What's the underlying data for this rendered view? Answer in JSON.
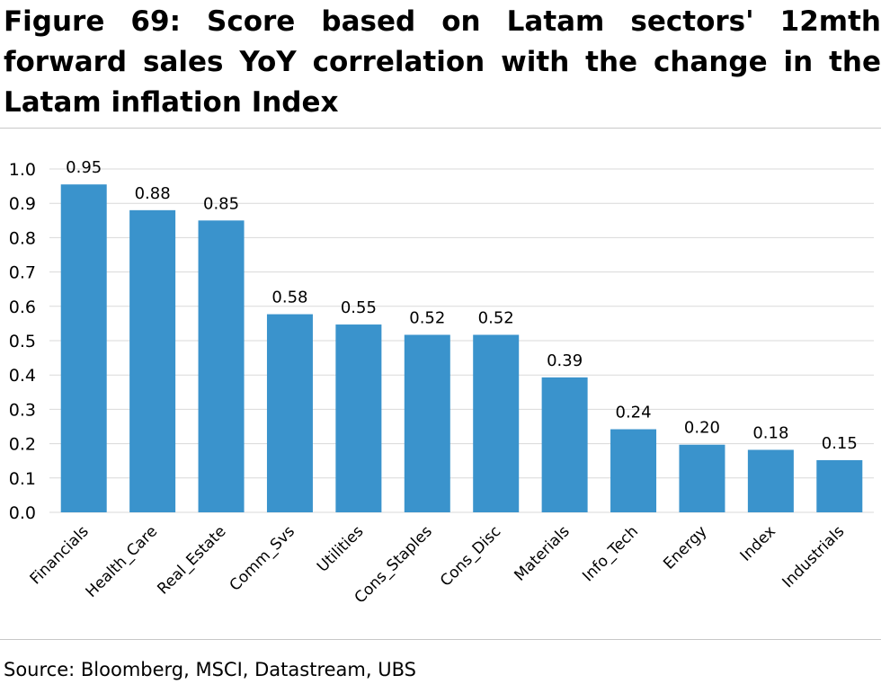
{
  "figure": {
    "title": "Figure 69: Score based on Latam sectors' 12mth forward sales YoY correlation with the change in the Latam inflation Index",
    "source": "Source: Bloomberg, MSCI, Datastream, UBS"
  },
  "colors": {
    "bar": "#3a93cc",
    "grid": "#d9d9d9",
    "text": "#000000"
  },
  "chart_data": {
    "type": "bar",
    "title": "",
    "xlabel": "",
    "ylabel": "",
    "categories": [
      "Financials",
      "Health_Care",
      "Real_Estate",
      "Comm_Svs",
      "Utilities",
      "Cons_Staples",
      "Cons_Disc",
      "Materials",
      "Info_Tech",
      "Energy",
      "Index",
      "Industrials"
    ],
    "values": [
      0.955,
      0.88,
      0.85,
      0.577,
      0.547,
      0.517,
      0.517,
      0.393,
      0.242,
      0.197,
      0.182,
      0.152
    ],
    "data_labels": [
      "0.95",
      "0.88",
      "0.85",
      "0.58",
      "0.55",
      "0.52",
      "0.52",
      "0.39",
      "0.24",
      "0.20",
      "0.18",
      "0.15"
    ],
    "ylim": [
      0,
      1.0
    ],
    "yticks": [
      "0.0",
      "0.1",
      "0.2",
      "0.3",
      "0.4",
      "0.5",
      "0.6",
      "0.7",
      "0.8",
      "0.9",
      "1.0"
    ],
    "grid": true,
    "legend": "none"
  }
}
